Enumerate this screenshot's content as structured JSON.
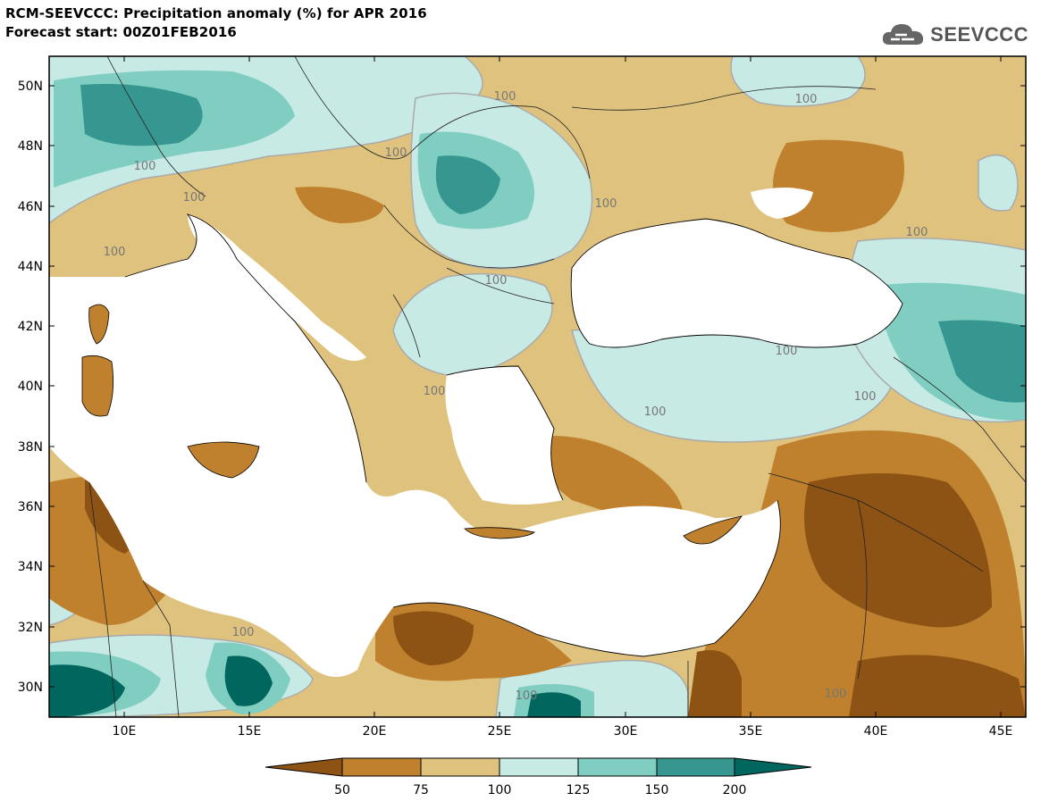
{
  "header": {
    "title_line1": "RCM-SEEVCCC: Precipitation anomaly (%) for APR 2016",
    "title_line2": "Forecast start: 00Z01FEB2016",
    "logo_text": "SEEVCCC"
  },
  "map": {
    "lon_range": [
      7,
      46
    ],
    "lat_range": [
      29,
      51
    ],
    "lat_ticks": [
      "50N",
      "48N",
      "46N",
      "44N",
      "42N",
      "40N",
      "38N",
      "36N",
      "34N",
      "32N",
      "30N"
    ],
    "lon_ticks": [
      "10E",
      "15E",
      "20E",
      "25E",
      "30E",
      "35E",
      "40E",
      "45E"
    ],
    "contour_labels": [
      "100",
      "100",
      "100",
      "100",
      "100",
      "100",
      "100",
      "100",
      "100",
      "100",
      "100",
      "100",
      "100",
      "100",
      "100",
      "100"
    ]
  },
  "colorbar": {
    "labels": [
      "50",
      "75",
      "100",
      "125",
      "150",
      "200"
    ],
    "colors": [
      "#8c5314",
      "#bf812d",
      "#dfc27d",
      "#c7eae5",
      "#80cdc1",
      "#35978f",
      "#01665e"
    ]
  }
}
